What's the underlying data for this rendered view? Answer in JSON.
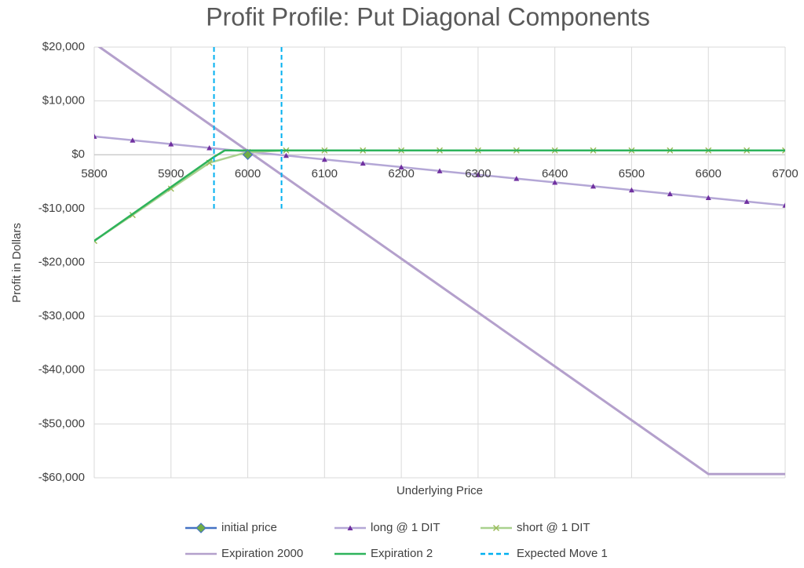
{
  "chart_data": {
    "type": "line",
    "title": "Profit Profile: Put Diagonal Components",
    "x_label": "Underlying Price",
    "y_label": "Profit in Dollars",
    "xlim": [
      5800,
      6700
    ],
    "xticks": [
      5800,
      5900,
      6000,
      6100,
      6200,
      6300,
      6400,
      6500,
      6600,
      6700
    ],
    "ylim": [
      -60000,
      20000
    ],
    "yticks": [
      {
        "value": 20000,
        "label": "$20,000"
      },
      {
        "value": 10000,
        "label": "$10,000"
      },
      {
        "value": 0,
        "label": "$0"
      },
      {
        "value": -10000,
        "label": "-$10,000"
      },
      {
        "value": -20000,
        "label": "-$20,000"
      },
      {
        "value": -30000,
        "label": "-$30,000"
      },
      {
        "value": -40000,
        "label": "-$40,000"
      },
      {
        "value": -50000,
        "label": "-$50,000"
      },
      {
        "value": -60000,
        "label": "-$60,000"
      }
    ],
    "grid": true,
    "legend": "bottom",
    "series": [
      {
        "name": "initial price",
        "color": "#4472c4",
        "marker": "diamond",
        "marker_color": "#70ad47",
        "x": [
          6000
        ],
        "values": [
          0
        ]
      },
      {
        "name": "long @ 1 DIT",
        "color": "#b4a7d6",
        "marker": "triangle",
        "marker_color": "#7030a0",
        "x": [
          5800,
          5850,
          5900,
          5950,
          6000,
          6050,
          6100,
          6150,
          6200,
          6250,
          6300,
          6350,
          6400,
          6450,
          6500,
          6550,
          6600,
          6650,
          6700
        ],
        "values": [
          3400,
          2690,
          1980,
          1270,
          560,
          -150,
          -870,
          -1580,
          -2290,
          -3000,
          -3710,
          -4420,
          -5130,
          -5840,
          -6560,
          -7270,
          -7980,
          -8690,
          -9400
        ]
      },
      {
        "name": "short @ 1 DIT",
        "color": "#a9d18e",
        "marker": "x",
        "marker_color": "#9bbb59",
        "x": [
          5800,
          5850,
          5900,
          5950,
          6000,
          6050,
          6100,
          6150,
          6200,
          6250,
          6300,
          6350,
          6400,
          6450,
          6500,
          6550,
          6600,
          6650,
          6700
        ],
        "values": [
          -16000,
          -11200,
          -6300,
          -1500,
          500,
          800,
          800,
          800,
          800,
          800,
          800,
          800,
          800,
          800,
          800,
          800,
          800,
          800,
          800
        ]
      },
      {
        "name": "Expiration 2000",
        "color": "#b4a0cc",
        "marker": null,
        "x": [
          5800,
          6600,
          6700
        ],
        "values": [
          20700,
          -59300,
          -59300
        ]
      },
      {
        "name": "Expiration 2",
        "color": "#2eb35b",
        "marker": null,
        "x": [
          5800,
          5955,
          5970,
          6700
        ],
        "values": [
          -16000,
          -500,
          800,
          800
        ]
      },
      {
        "name": "Expected Move 1",
        "color": "#00b0f0",
        "marker": null,
        "dashed": true,
        "vlines": [
          5956,
          6044
        ],
        "y_range": [
          20000,
          -10000
        ]
      }
    ]
  }
}
